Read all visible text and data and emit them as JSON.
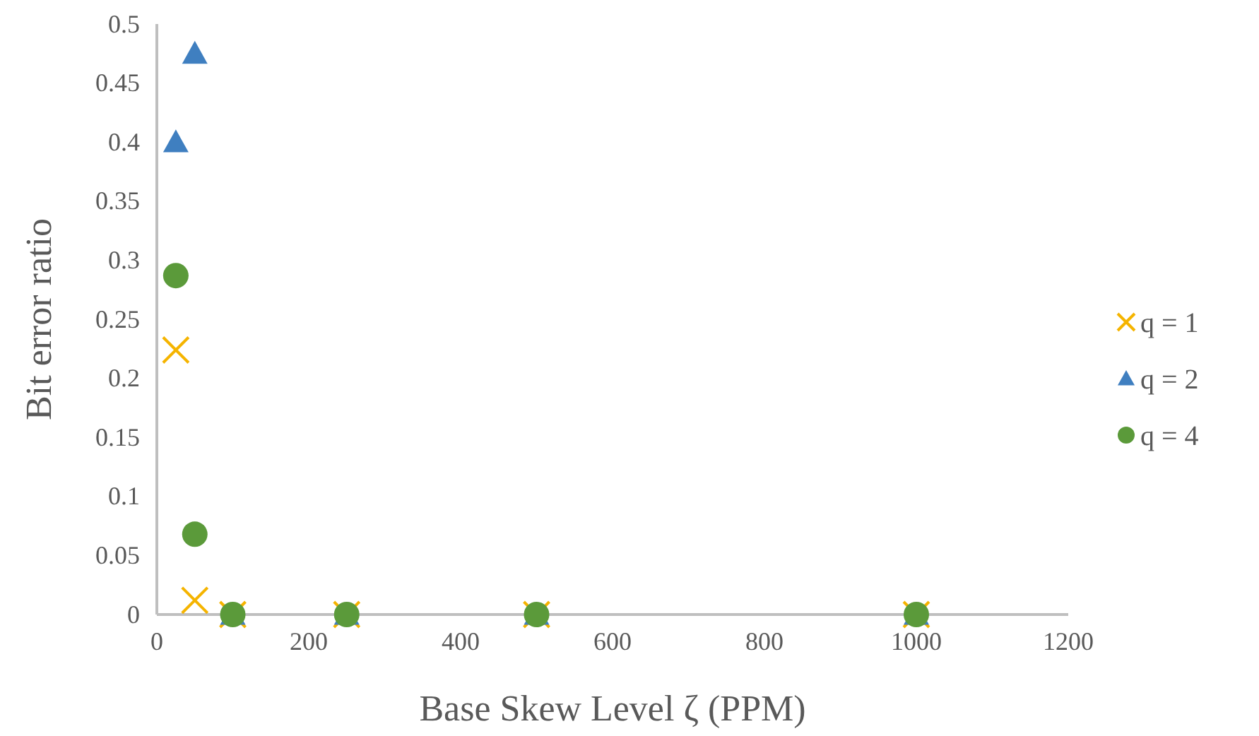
{
  "chart_data": {
    "type": "scatter",
    "xlabel": "Base Skew Level ζ (PPM)",
    "ylabel": "Bit error ratio",
    "x": [
      25,
      50,
      100,
      250,
      500,
      1000
    ],
    "xlim": [
      0,
      1200
    ],
    "xticks": [
      0,
      200,
      400,
      600,
      800,
      1000,
      1200
    ],
    "ylim": [
      0,
      0.5
    ],
    "yticks": [
      0,
      0.05,
      0.1,
      0.15,
      0.2,
      0.25,
      0.3,
      0.35,
      0.4,
      0.45,
      0.5
    ],
    "grid": false,
    "legend": "right",
    "series": [
      {
        "name": "q = 1",
        "color": "#f5b400",
        "marker": "cross",
        "values": [
          0.224,
          0.012,
          0,
          0,
          0,
          0
        ]
      },
      {
        "name": "q = 2",
        "color": "#3f7fc0",
        "marker": "triangle",
        "values": [
          0.4,
          0.475,
          0,
          0,
          0,
          0
        ]
      },
      {
        "name": "q = 4",
        "color": "#5b9a3a",
        "marker": "circle",
        "values": [
          0.287,
          0.068,
          0,
          0,
          0,
          0
        ]
      }
    ]
  }
}
